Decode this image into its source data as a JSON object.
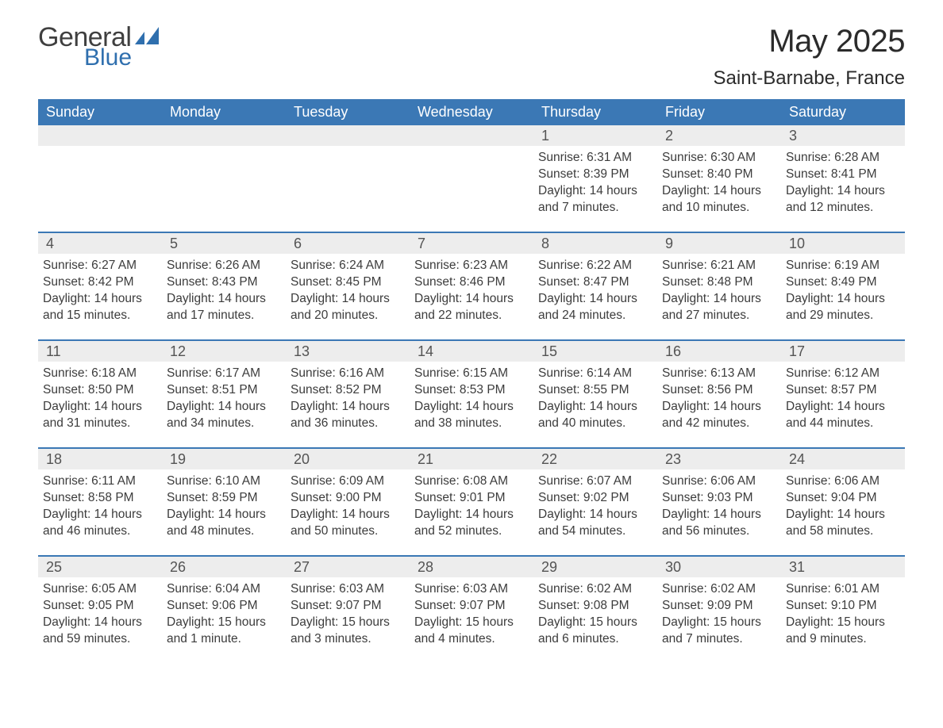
{
  "brand": {
    "word1": "General",
    "word2": "Blue"
  },
  "title": "May 2025",
  "location": "Saint-Barnabe, France",
  "colors": {
    "header_bg": "#3b78b5",
    "header_text": "#ffffff",
    "daynum_bg": "#ededed",
    "daynum_text": "#545454",
    "body_text": "#3c3c3c",
    "brand_blue": "#2f6fae",
    "page_bg": "#ffffff"
  },
  "typography": {
    "title_fontsize": 40,
    "location_fontsize": 24,
    "dow_fontsize": 18,
    "daynum_fontsize": 18,
    "body_fontsize": 15.5,
    "font_family": "Arial"
  },
  "days_of_week": [
    "Sunday",
    "Monday",
    "Tuesday",
    "Wednesday",
    "Thursday",
    "Friday",
    "Saturday"
  ],
  "weeks": [
    [
      {
        "blank": true
      },
      {
        "blank": true
      },
      {
        "blank": true
      },
      {
        "blank": true
      },
      {
        "n": "1",
        "sunrise": "6:31 AM",
        "sunset": "8:39 PM",
        "daylight": "14 hours and 7 minutes."
      },
      {
        "n": "2",
        "sunrise": "6:30 AM",
        "sunset": "8:40 PM",
        "daylight": "14 hours and 10 minutes."
      },
      {
        "n": "3",
        "sunrise": "6:28 AM",
        "sunset": "8:41 PM",
        "daylight": "14 hours and 12 minutes."
      }
    ],
    [
      {
        "n": "4",
        "sunrise": "6:27 AM",
        "sunset": "8:42 PM",
        "daylight": "14 hours and 15 minutes."
      },
      {
        "n": "5",
        "sunrise": "6:26 AM",
        "sunset": "8:43 PM",
        "daylight": "14 hours and 17 minutes."
      },
      {
        "n": "6",
        "sunrise": "6:24 AM",
        "sunset": "8:45 PM",
        "daylight": "14 hours and 20 minutes."
      },
      {
        "n": "7",
        "sunrise": "6:23 AM",
        "sunset": "8:46 PM",
        "daylight": "14 hours and 22 minutes."
      },
      {
        "n": "8",
        "sunrise": "6:22 AM",
        "sunset": "8:47 PM",
        "daylight": "14 hours and 24 minutes."
      },
      {
        "n": "9",
        "sunrise": "6:21 AM",
        "sunset": "8:48 PM",
        "daylight": "14 hours and 27 minutes."
      },
      {
        "n": "10",
        "sunrise": "6:19 AM",
        "sunset": "8:49 PM",
        "daylight": "14 hours and 29 minutes."
      }
    ],
    [
      {
        "n": "11",
        "sunrise": "6:18 AM",
        "sunset": "8:50 PM",
        "daylight": "14 hours and 31 minutes."
      },
      {
        "n": "12",
        "sunrise": "6:17 AM",
        "sunset": "8:51 PM",
        "daylight": "14 hours and 34 minutes."
      },
      {
        "n": "13",
        "sunrise": "6:16 AM",
        "sunset": "8:52 PM",
        "daylight": "14 hours and 36 minutes."
      },
      {
        "n": "14",
        "sunrise": "6:15 AM",
        "sunset": "8:53 PM",
        "daylight": "14 hours and 38 minutes."
      },
      {
        "n": "15",
        "sunrise": "6:14 AM",
        "sunset": "8:55 PM",
        "daylight": "14 hours and 40 minutes."
      },
      {
        "n": "16",
        "sunrise": "6:13 AM",
        "sunset": "8:56 PM",
        "daylight": "14 hours and 42 minutes."
      },
      {
        "n": "17",
        "sunrise": "6:12 AM",
        "sunset": "8:57 PM",
        "daylight": "14 hours and 44 minutes."
      }
    ],
    [
      {
        "n": "18",
        "sunrise": "6:11 AM",
        "sunset": "8:58 PM",
        "daylight": "14 hours and 46 minutes."
      },
      {
        "n": "19",
        "sunrise": "6:10 AM",
        "sunset": "8:59 PM",
        "daylight": "14 hours and 48 minutes."
      },
      {
        "n": "20",
        "sunrise": "6:09 AM",
        "sunset": "9:00 PM",
        "daylight": "14 hours and 50 minutes."
      },
      {
        "n": "21",
        "sunrise": "6:08 AM",
        "sunset": "9:01 PM",
        "daylight": "14 hours and 52 minutes."
      },
      {
        "n": "22",
        "sunrise": "6:07 AM",
        "sunset": "9:02 PM",
        "daylight": "14 hours and 54 minutes."
      },
      {
        "n": "23",
        "sunrise": "6:06 AM",
        "sunset": "9:03 PM",
        "daylight": "14 hours and 56 minutes."
      },
      {
        "n": "24",
        "sunrise": "6:06 AM",
        "sunset": "9:04 PM",
        "daylight": "14 hours and 58 minutes."
      }
    ],
    [
      {
        "n": "25",
        "sunrise": "6:05 AM",
        "sunset": "9:05 PM",
        "daylight": "14 hours and 59 minutes."
      },
      {
        "n": "26",
        "sunrise": "6:04 AM",
        "sunset": "9:06 PM",
        "daylight": "15 hours and 1 minute."
      },
      {
        "n": "27",
        "sunrise": "6:03 AM",
        "sunset": "9:07 PM",
        "daylight": "15 hours and 3 minutes."
      },
      {
        "n": "28",
        "sunrise": "6:03 AM",
        "sunset": "9:07 PM",
        "daylight": "15 hours and 4 minutes."
      },
      {
        "n": "29",
        "sunrise": "6:02 AM",
        "sunset": "9:08 PM",
        "daylight": "15 hours and 6 minutes."
      },
      {
        "n": "30",
        "sunrise": "6:02 AM",
        "sunset": "9:09 PM",
        "daylight": "15 hours and 7 minutes."
      },
      {
        "n": "31",
        "sunrise": "6:01 AM",
        "sunset": "9:10 PM",
        "daylight": "15 hours and 9 minutes."
      }
    ]
  ],
  "labels": {
    "sunrise": "Sunrise:",
    "sunset": "Sunset:",
    "daylight": "Daylight:"
  }
}
